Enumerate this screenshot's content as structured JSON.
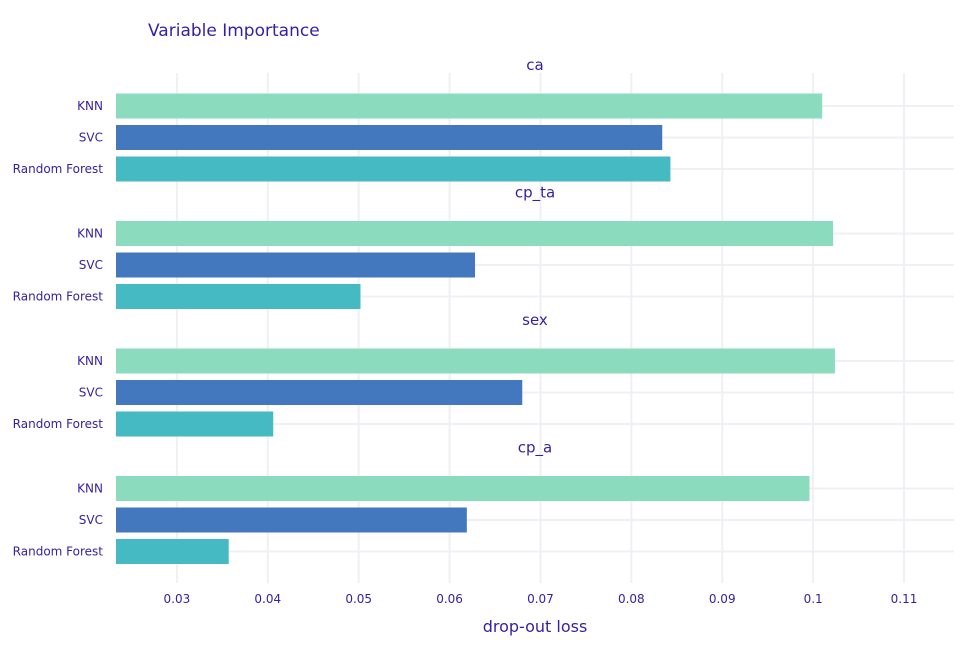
{
  "chart_data": {
    "type": "bar",
    "orientation": "horizontal",
    "title": "Variable Importance",
    "xlabel": "drop-out loss",
    "xlim": [
      0.0233,
      0.1155
    ],
    "xticks": [
      0.03,
      0.04,
      0.05,
      0.06,
      0.07,
      0.08,
      0.09,
      0.1,
      0.11
    ],
    "xtick_labels": [
      "0.03",
      "0.04",
      "0.05",
      "0.06",
      "0.07",
      "0.08",
      "0.09",
      "0.1",
      "0.11"
    ],
    "grid": true,
    "bars_start_at": 0.0233,
    "categories": [
      "KNN",
      "SVC",
      "Random Forest"
    ],
    "colors": {
      "KNN": "#8bdcbe",
      "SVC": "#4378bf",
      "Random Forest": "#46bac2"
    },
    "facets": [
      {
        "variable": "ca",
        "values": {
          "KNN": 0.101,
          "SVC": 0.0834,
          "Random Forest": 0.0843
        }
      },
      {
        "variable": "cp_ta",
        "values": {
          "KNN": 0.1022,
          "SVC": 0.0628,
          "Random Forest": 0.0502
        }
      },
      {
        "variable": "sex",
        "values": {
          "KNN": 0.1024,
          "SVC": 0.068,
          "Random Forest": 0.0406
        }
      },
      {
        "variable": "cp_a",
        "values": {
          "KNN": 0.0996,
          "SVC": 0.0619,
          "Random Forest": 0.0357
        }
      }
    ],
    "text_color": "#371ea3",
    "grid_color": "#f0f0f4"
  }
}
